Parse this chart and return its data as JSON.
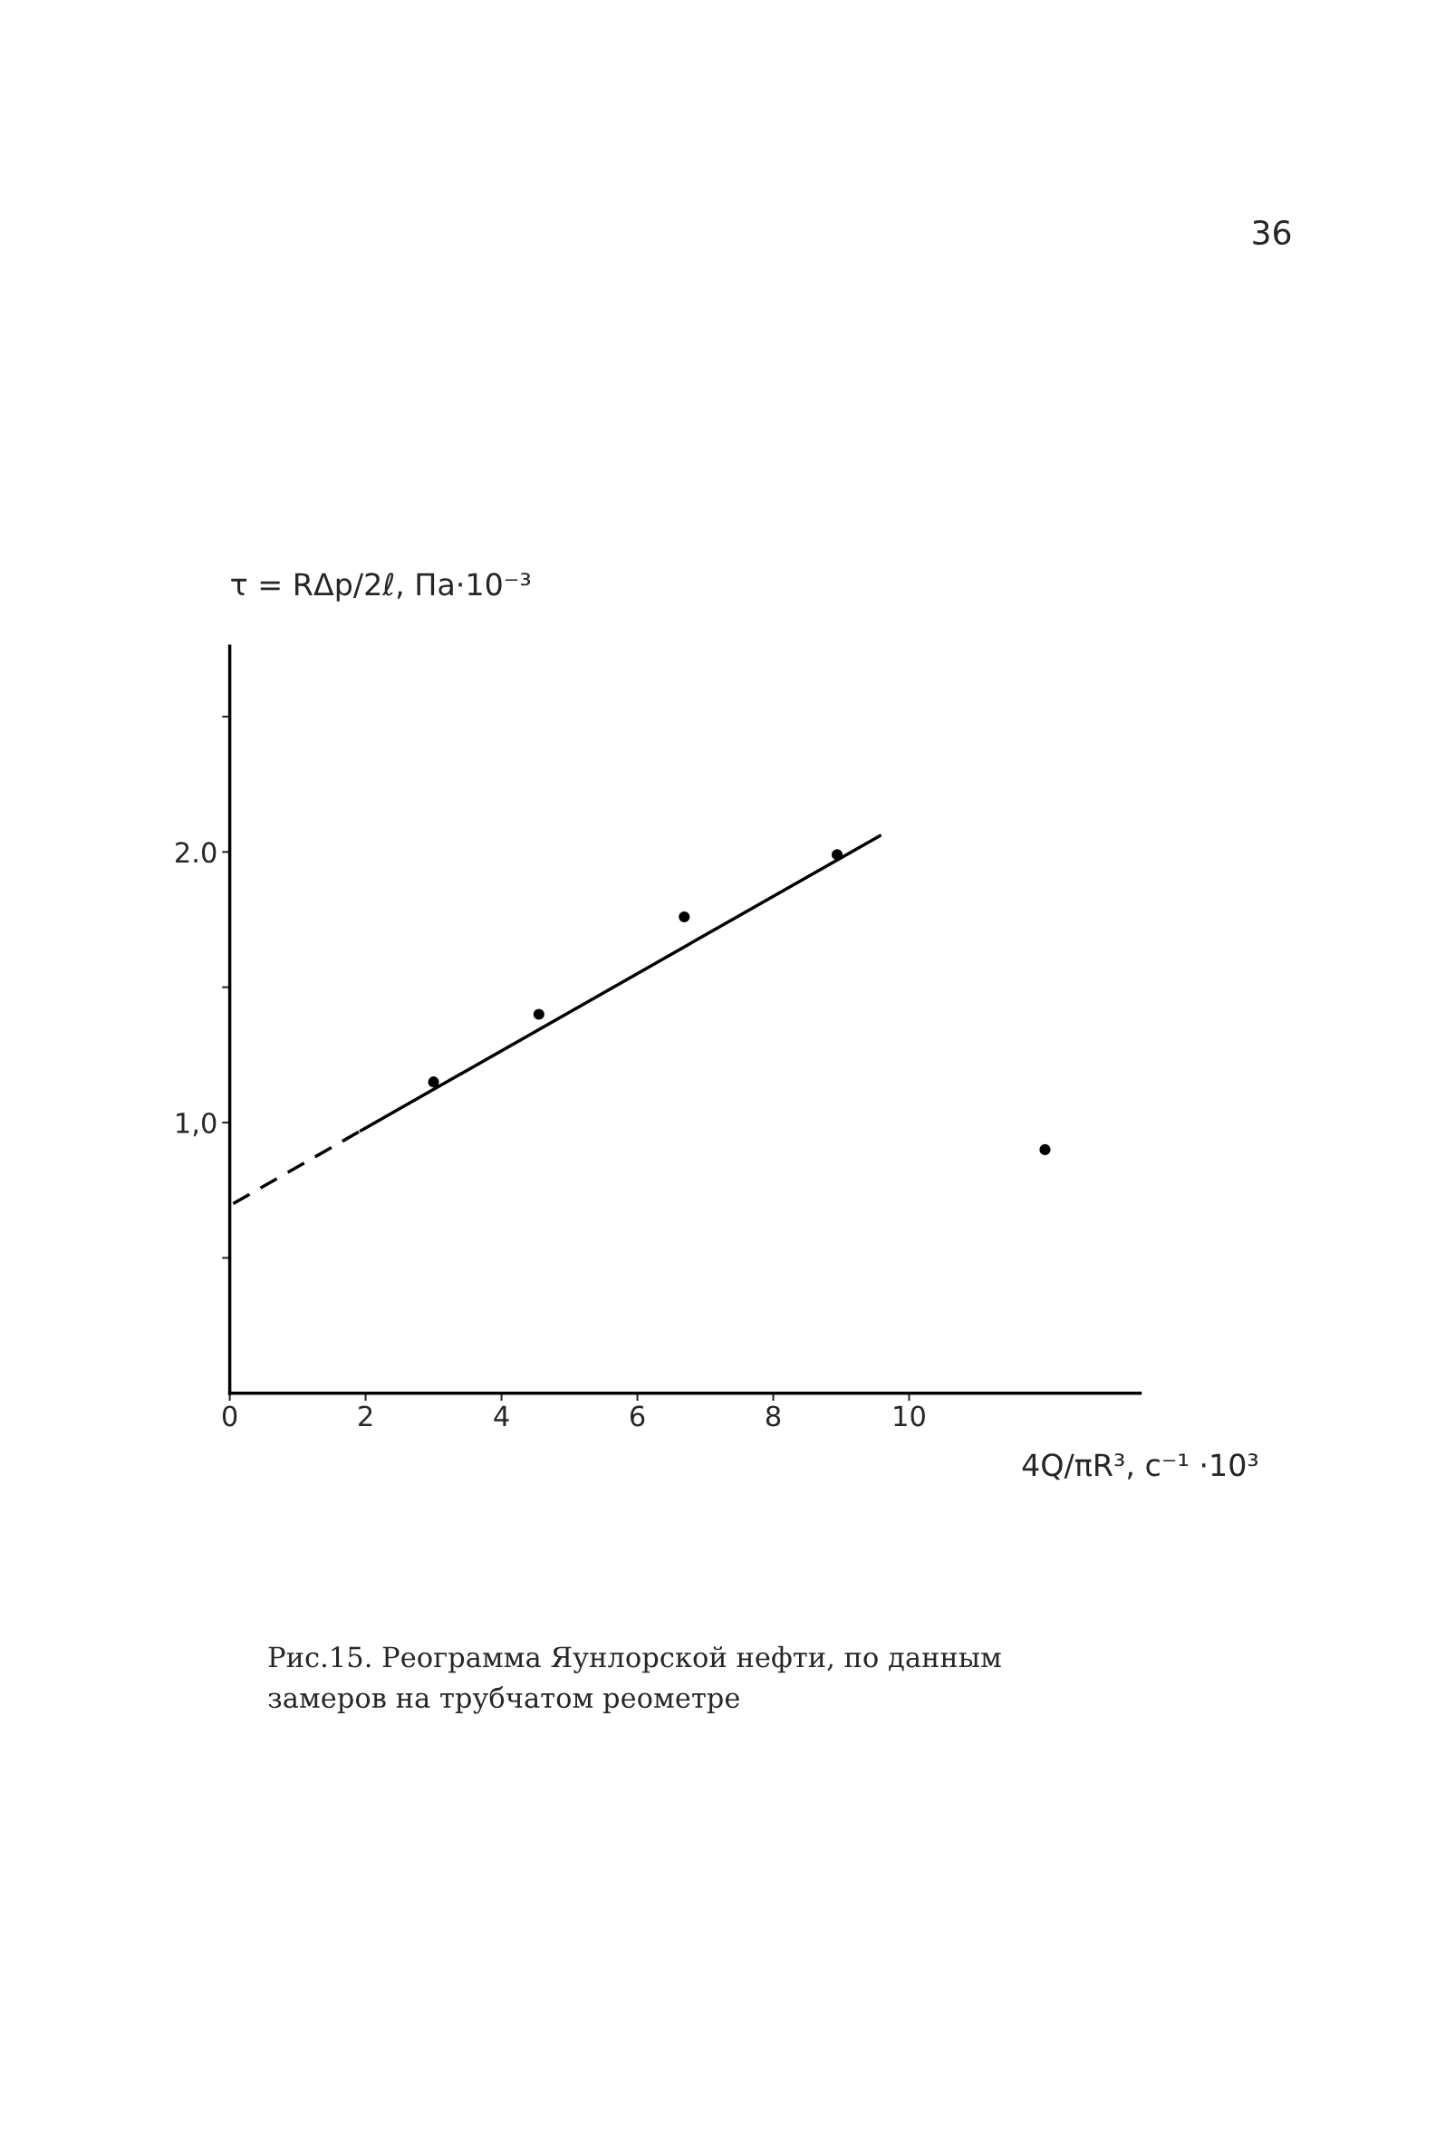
{
  "chart_data": {
    "type": "scatter",
    "xlabel": "4Q/πR³, с⁻¹ ·10³",
    "ylabel": "τ = RΔp/2ℓ, Па·10⁻³",
    "series": [
      {
        "color": "#000000",
        "marker": "circle",
        "x": [
          3.0,
          4.55,
          6.69,
          8.94,
          12.0
        ],
        "values": [
          1.15,
          1.4,
          1.76,
          1.99,
          0.9
        ]
      },
      {
        "type": "line",
        "color": "#000000",
        "line_style": "solid",
        "marker": "none",
        "x": [
          1.93,
          9.57
        ],
        "values": [
          0.97,
          2.06
        ]
      },
      {
        "type": "line",
        "color": "#000000",
        "line_style": "dashed",
        "marker": "none",
        "x": [
          0.05,
          1.93
        ],
        "values": [
          0.7,
          0.97
        ]
      }
    ],
    "xlim": [
      0,
      13.4
    ],
    "ylim": [
      0,
      2.76
    ],
    "xticks": [
      0,
      2,
      4,
      6,
      8,
      10
    ],
    "yticks": [
      {
        "value": 0.5,
        "label": null
      },
      {
        "value": 1.0,
        "label": "1,0"
      },
      {
        "value": 1.5,
        "label": null
      },
      {
        "value": 2.0,
        "label": "2.0"
      },
      {
        "value": 2.5,
        "label": null
      }
    ],
    "grid": false,
    "annotations": [
      "36",
      "Рис.15. Реограмма Яунлорской нефти, по данным\nзамеров на трубчатом реометре"
    ]
  }
}
